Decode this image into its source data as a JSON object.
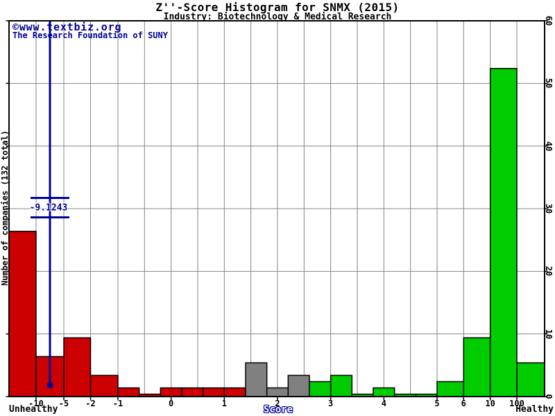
{
  "page": {
    "title": "Z''-Score Histogram for SNMX (2015)",
    "subtitle": "Industry: Biotechnology & Medical Research"
  },
  "watermark": {
    "line1": "©www.textbiz.org",
    "line2": "The Research Foundation of SUNY"
  },
  "axis": {
    "y_label": "Number of companies (132 total)",
    "x_label": "Score",
    "unhealthy_label": "Unhealthy",
    "healthy_label": "Healthy"
  },
  "marker": {
    "label": "-9.1243",
    "score": -9.1243
  },
  "colors": {
    "unhealthy": "#cc0000",
    "grey": "#808080",
    "healthy": "#00cc00",
    "marker": "#000099",
    "grid": "#848484",
    "frame": "#000000"
  },
  "chart_data": {
    "type": "bar",
    "title": "Z''-Score Histogram for SNMX (2015)",
    "subtitle": "Industry: Biotechnology & Medical Research",
    "company": "SNMX",
    "year": 2015,
    "marker_score": -9.1243,
    "xlabel": "Score",
    "ylabel": "Number of companies (132 total)",
    "total_companies": 132,
    "ylim": [
      0,
      60
    ],
    "y_ticks": [
      0,
      10,
      20,
      30,
      40,
      50,
      60
    ],
    "x_ticks": [
      -10,
      -5,
      -2,
      -1,
      0,
      1,
      2,
      3,
      4,
      5,
      6,
      10,
      100
    ],
    "grid": "on",
    "zones": {
      "unhealthy": "red",
      "grey": "grey",
      "healthy": "green"
    },
    "bins": [
      {
        "from": "-inf",
        "to": -10,
        "count": 26,
        "zone": "unhealthy"
      },
      {
        "from": -10,
        "to": -5,
        "count": 6,
        "zone": "unhealthy"
      },
      {
        "from": -5,
        "to": -2,
        "count": 9,
        "zone": "unhealthy"
      },
      {
        "from": -2,
        "to": -1,
        "count": 3,
        "zone": "unhealthy"
      },
      {
        "from": -1,
        "to": -0.6,
        "count": 1,
        "zone": "unhealthy"
      },
      {
        "from": -0.6,
        "to": -0.2,
        "count": 0,
        "zone": "unhealthy"
      },
      {
        "from": -0.2,
        "to": 0.2,
        "count": 1,
        "zone": "unhealthy"
      },
      {
        "from": 0.2,
        "to": 0.6,
        "count": 1,
        "zone": "unhealthy"
      },
      {
        "from": 0.6,
        "to": 1,
        "count": 1,
        "zone": "unhealthy"
      },
      {
        "from": 1,
        "to": 1.4,
        "count": 1,
        "zone": "unhealthy"
      },
      {
        "from": 1.4,
        "to": 1.8,
        "count": 5,
        "zone": "grey"
      },
      {
        "from": 1.8,
        "to": 2.2,
        "count": 1,
        "zone": "grey"
      },
      {
        "from": 2.2,
        "to": 2.6,
        "count": 3,
        "zone": "grey"
      },
      {
        "from": 2.6,
        "to": 3,
        "count": 2,
        "zone": "healthy"
      },
      {
        "from": 3,
        "to": 3.4,
        "count": 3,
        "zone": "healthy"
      },
      {
        "from": 3.4,
        "to": 3.8,
        "count": 0,
        "zone": "healthy"
      },
      {
        "from": 3.8,
        "to": 4.2,
        "count": 1,
        "zone": "healthy"
      },
      {
        "from": 4.2,
        "to": 4.6,
        "count": 0,
        "zone": "healthy"
      },
      {
        "from": 4.6,
        "to": 5,
        "count": 0,
        "zone": "healthy"
      },
      {
        "from": 5,
        "to": 6,
        "count": 2,
        "zone": "healthy"
      },
      {
        "from": 6,
        "to": 10,
        "count": 9,
        "zone": "healthy"
      },
      {
        "from": 10,
        "to": 100,
        "count": 52,
        "zone": "healthy"
      },
      {
        "from": 100,
        "to": "inf",
        "count": 5,
        "zone": "healthy"
      }
    ]
  }
}
